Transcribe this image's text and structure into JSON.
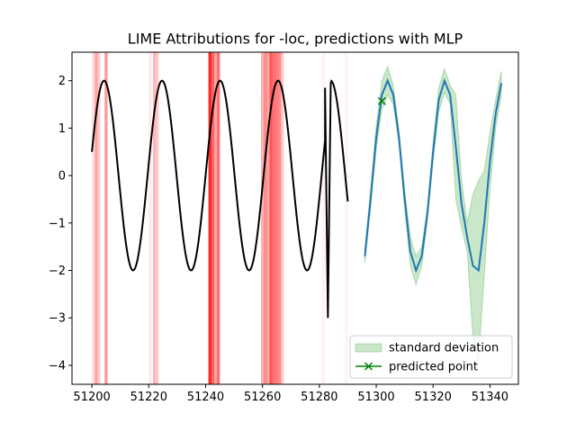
{
  "chart_data": {
    "type": "line",
    "title": "LIME Attributions for -loc, predictions with MLP",
    "xlabel": "",
    "ylabel": "",
    "xlim": [
      51193,
      51350
    ],
    "ylim": [
      -4.4,
      2.6
    ],
    "xticks": [
      51200,
      51220,
      51240,
      51260,
      51280,
      51300,
      51320,
      51340
    ],
    "yticks": [
      -4,
      -3,
      -2,
      -1,
      0,
      1,
      2
    ],
    "grid": false,
    "legend_position": "lower-right",
    "colors": {
      "input": "#000000",
      "prediction": "#1f77b4",
      "band": "#2ca02c",
      "point": "#008000",
      "attribution": "#ff0000"
    },
    "input_series": {
      "x_start": 51200,
      "x_end": 51290,
      "amplitude": 2.0,
      "period": 20.4,
      "phase_x": 51200,
      "start_value": 0.5,
      "anomaly": {
        "points": [
          {
            "x": 51282,
            "y": 1.85
          },
          {
            "x": 51283,
            "y": -3.0
          },
          {
            "x": 51284,
            "y": 1.95
          }
        ]
      }
    },
    "prediction_series": {
      "name": "",
      "x": [
        51296,
        51298,
        51300,
        51302,
        51304,
        51306,
        51308,
        51310,
        51312,
        51314,
        51316,
        51318,
        51320,
        51322,
        51324,
        51326,
        51328,
        51330,
        51332,
        51334,
        51336,
        51338,
        51340,
        51342,
        51344
      ],
      "y": [
        -1.7,
        -0.5,
        0.8,
        1.7,
        2.0,
        1.7,
        0.8,
        -0.5,
        -1.6,
        -2.0,
        -1.7,
        -0.8,
        0.5,
        1.6,
        2.0,
        1.7,
        0.6,
        -0.6,
        -1.3,
        -1.9,
        -2.0,
        -1.0,
        0.3,
        1.3,
        1.95
      ],
      "std": [
        0.15,
        0.2,
        0.25,
        0.3,
        0.3,
        0.2,
        0.15,
        0.2,
        0.3,
        0.3,
        0.2,
        0.15,
        0.2,
        0.25,
        0.25,
        0.2,
        1.1,
        0.5,
        0.3,
        1.5,
        1.9,
        1.1,
        0.6,
        0.3,
        0.25
      ]
    },
    "predicted_point": {
      "x": 51302,
      "y": 1.57
    },
    "attributions": [
      {
        "x": 51200.5,
        "alpha": 0.12
      },
      {
        "x": 51201.5,
        "alpha": 0.35
      },
      {
        "x": 51202.5,
        "alpha": 0.18
      },
      {
        "x": 51205,
        "alpha": 0.4
      },
      {
        "x": 51220.5,
        "alpha": 0.08
      },
      {
        "x": 51222,
        "alpha": 0.28
      },
      {
        "x": 51223,
        "alpha": 0.2
      },
      {
        "x": 51241.5,
        "alpha": 0.85
      },
      {
        "x": 51242.5,
        "alpha": 0.6
      },
      {
        "x": 51243.5,
        "alpha": 0.35
      },
      {
        "x": 51244.5,
        "alpha": 0.55
      },
      {
        "x": 51260,
        "alpha": 0.3
      },
      {
        "x": 51261,
        "alpha": 0.45
      },
      {
        "x": 51262,
        "alpha": 0.35
      },
      {
        "x": 51263,
        "alpha": 0.65
      },
      {
        "x": 51264,
        "alpha": 0.55
      },
      {
        "x": 51265,
        "alpha": 0.5
      },
      {
        "x": 51266,
        "alpha": 0.45
      },
      {
        "x": 51267,
        "alpha": 0.2
      },
      {
        "x": 51281.5,
        "alpha": 0.05
      },
      {
        "x": 51289.5,
        "alpha": 0.05
      }
    ],
    "legend": [
      {
        "label": "standard deviation",
        "kind": "band"
      },
      {
        "label": "predicted point",
        "kind": "marker"
      }
    ]
  }
}
